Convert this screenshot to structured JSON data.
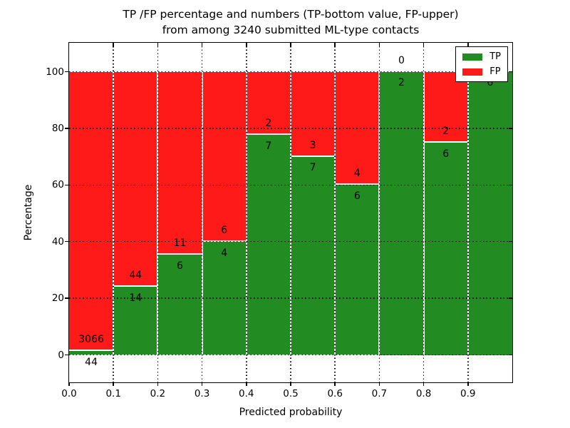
{
  "title": {
    "line1": "TP /FP percentage and numbers (TP-bottom value, FP-upper)",
    "line2": "from among 3240 submitted ML-type contacts"
  },
  "axes": {
    "xlabel": "Predicted probability",
    "ylabel": "Percentage",
    "x_tick_labels": [
      "0.0",
      "0.1",
      "0.2",
      "0.3",
      "0.4",
      "0.5",
      "0.6",
      "0.7",
      "0.8",
      "0.9"
    ],
    "y_tick_labels": [
      "0",
      "20",
      "40",
      "60",
      "80",
      "100"
    ]
  },
  "legend": {
    "entries": [
      {
        "label": "TP",
        "color": "#228b22"
      },
      {
        "label": "FP",
        "color": "#ff1a1a"
      }
    ]
  },
  "colors": {
    "tp": "#228b22",
    "fp": "#ff1a1a",
    "grid": "#000000",
    "frame": "#000000",
    "background": "#ffffff"
  },
  "chart_data": {
    "type": "bar",
    "stacked": true,
    "title": "TP /FP percentage and numbers (TP-bottom value, FP-upper) from among 3240 submitted ML-type contacts",
    "xlabel": "Predicted probability",
    "ylabel": "Percentage",
    "total_contacts": 3240,
    "x_bins": [
      [
        0.0,
        0.1
      ],
      [
        0.1,
        0.2
      ],
      [
        0.2,
        0.3
      ],
      [
        0.3,
        0.4
      ],
      [
        0.4,
        0.5
      ],
      [
        0.5,
        0.6
      ],
      [
        0.6,
        0.7
      ],
      [
        0.7,
        0.8
      ],
      [
        0.8,
        0.9
      ],
      [
        0.9,
        1.0
      ]
    ],
    "x_ticks": [
      0.0,
      0.1,
      0.2,
      0.3,
      0.4,
      0.5,
      0.6,
      0.7,
      0.8,
      0.9
    ],
    "y_ticks": [
      0,
      20,
      40,
      60,
      80,
      100
    ],
    "xlim": [
      0.0,
      1.0
    ],
    "ylim": [
      -10,
      110
    ],
    "grid": {
      "style": "dotted",
      "color": "#000000",
      "on": true
    },
    "legend_position": "upper right",
    "series": [
      {
        "name": "TP",
        "color": "#228b22",
        "counts": [
          44,
          14,
          6,
          4,
          7,
          7,
          6,
          2,
          6,
          6
        ],
        "percent_of_bin": [
          1.4,
          24.1,
          35.3,
          40.0,
          77.8,
          70.0,
          60.0,
          100.0,
          75.0,
          100.0
        ]
      },
      {
        "name": "FP",
        "color": "#ff1a1a",
        "counts": [
          3066,
          44,
          11,
          6,
          2,
          3,
          4,
          0,
          2,
          0
        ],
        "percent_of_bin": [
          98.6,
          75.9,
          64.7,
          60.0,
          22.2,
          30.0,
          40.0,
          0.0,
          25.0,
          0.0
        ]
      }
    ]
  }
}
